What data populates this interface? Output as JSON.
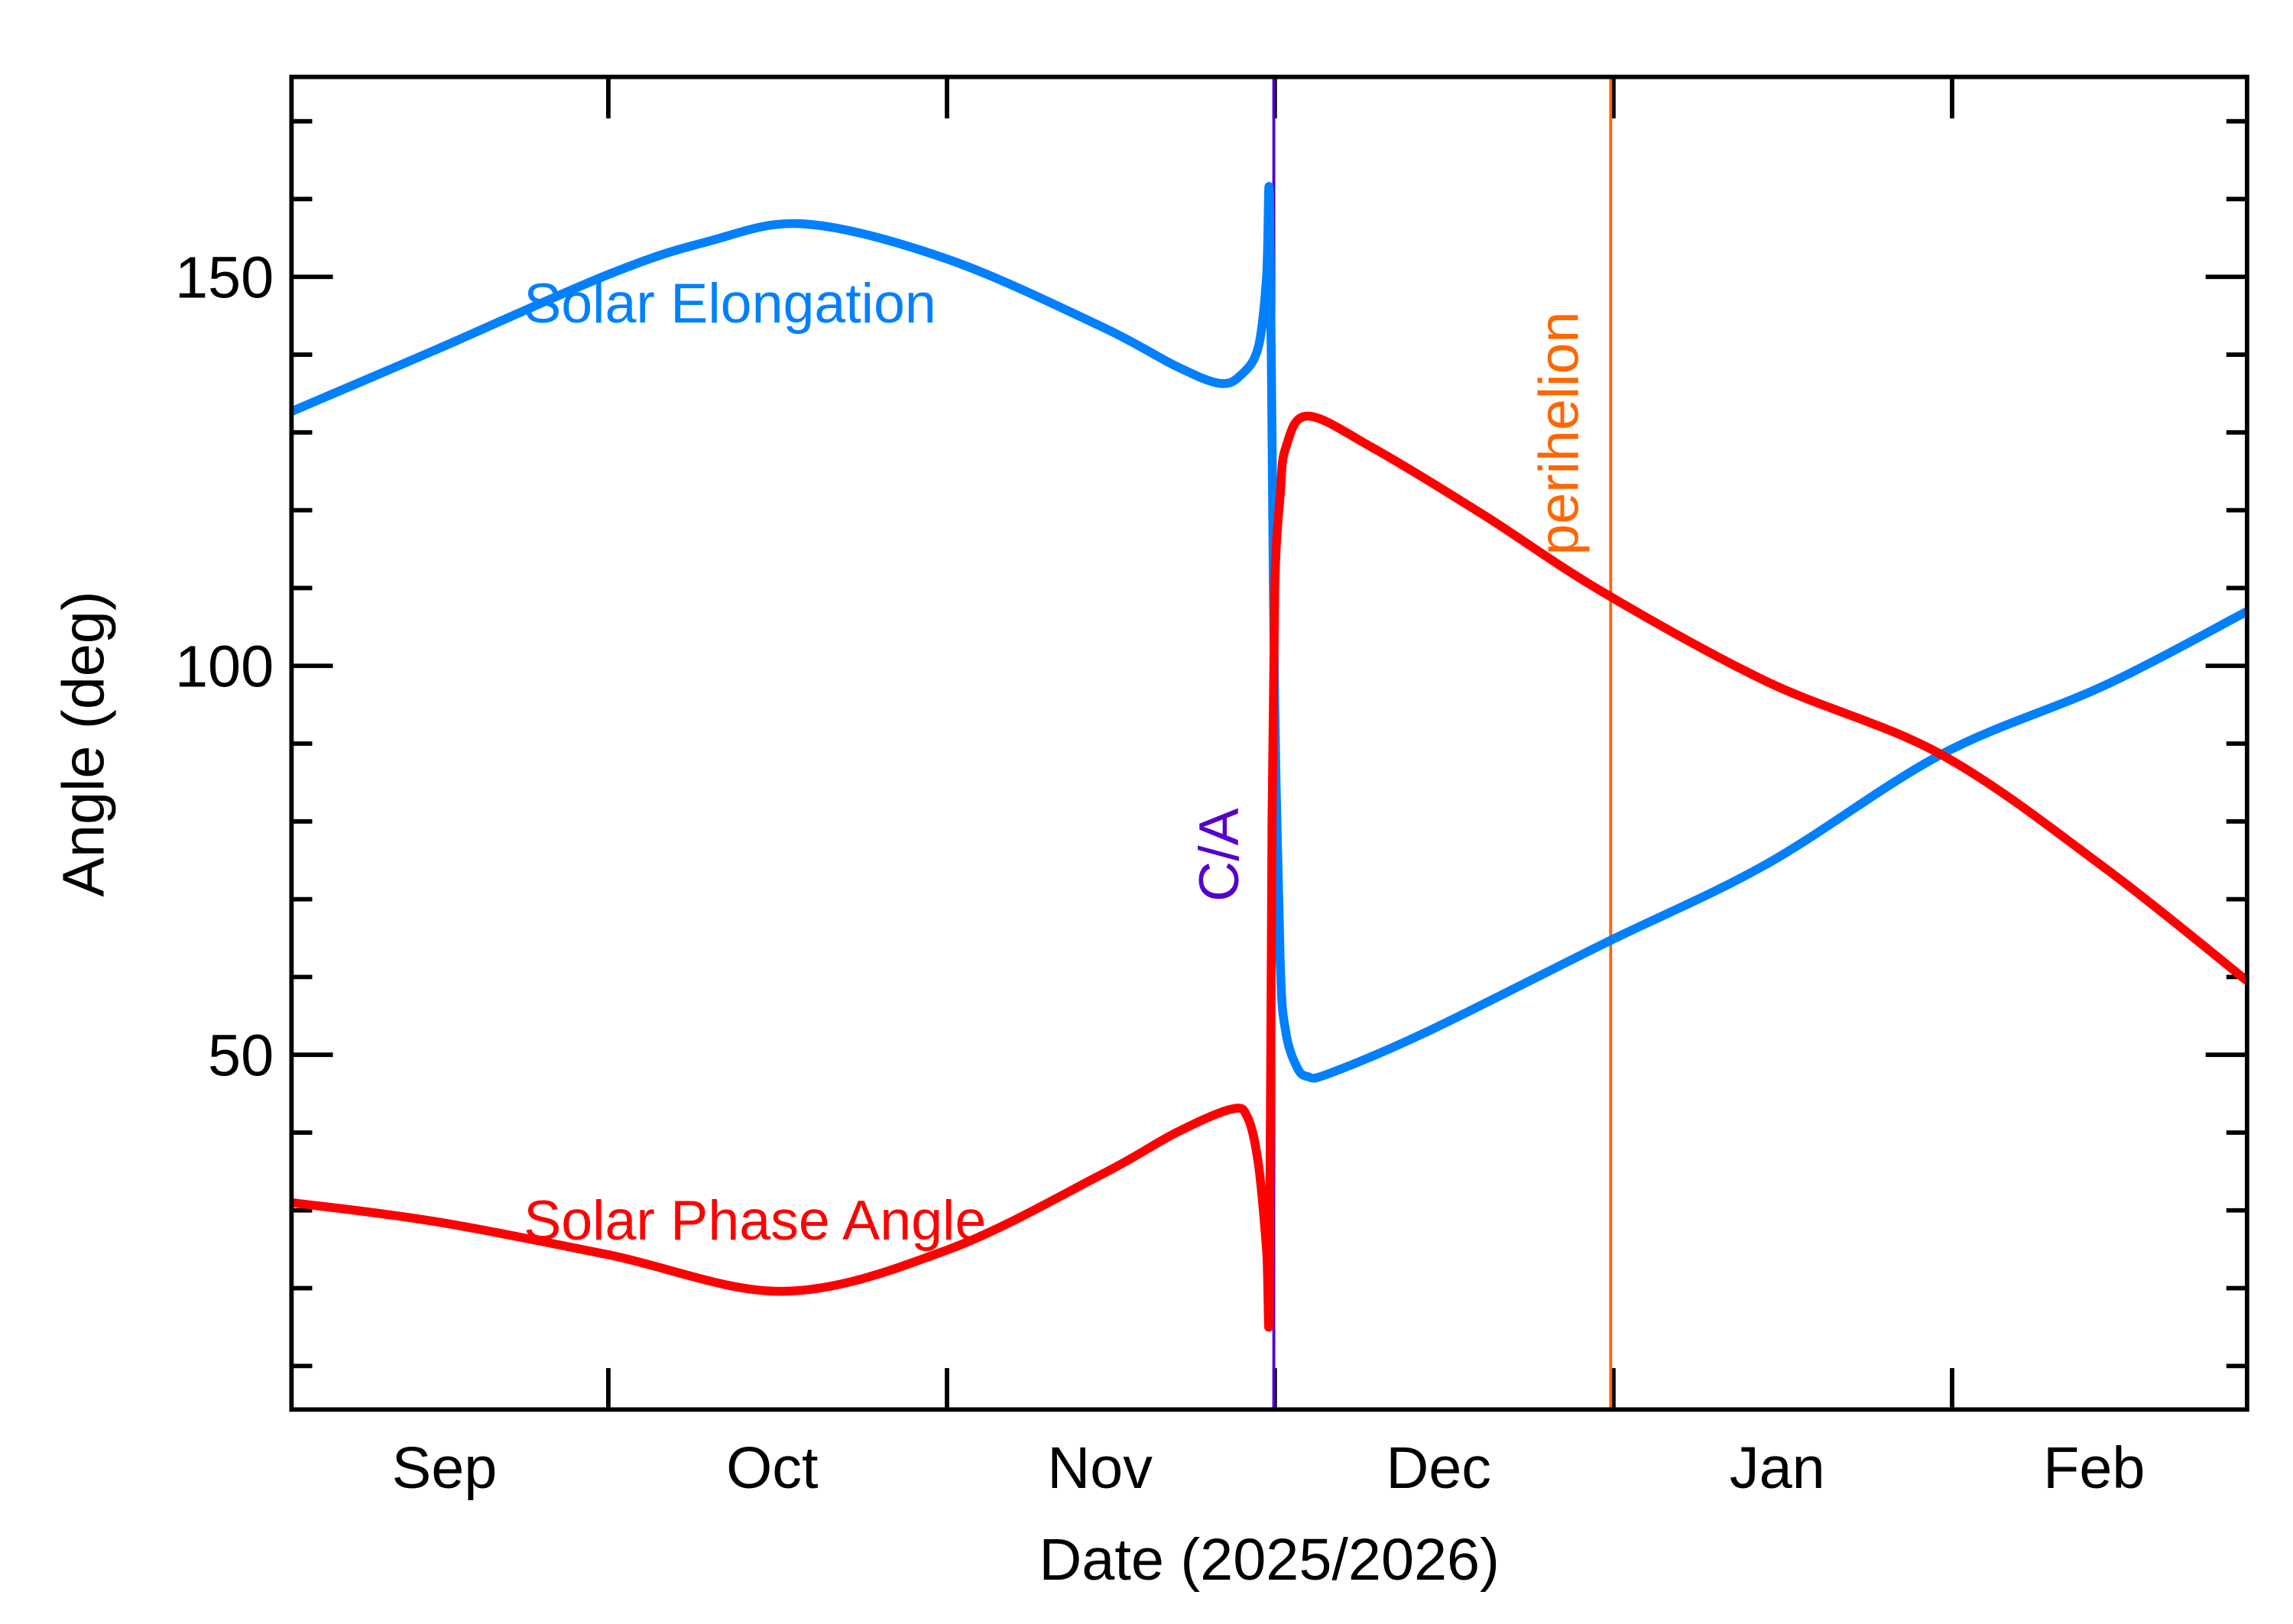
{
  "chart_data": {
    "type": "line",
    "title": "",
    "xlabel": "Date (2025/2026)",
    "ylabel": "Angle (deg)",
    "xlim": [
      "2025-09-02",
      "2026-02-28"
    ],
    "ylim": [
      4.4,
      175.7
    ],
    "grid": false,
    "x_tick_labels": [
      {
        "label": "Sep",
        "date": "2025-09-16"
      },
      {
        "label": "Oct",
        "date": "2025-10-16"
      },
      {
        "label": "Nov",
        "date": "2025-11-15"
      },
      {
        "label": "Dec",
        "date": "2025-12-16"
      },
      {
        "label": "Jan",
        "date": "2026-01-16"
      },
      {
        "label": "Feb",
        "date": "2026-02-14"
      }
    ],
    "x_major_ticks": [
      "2025-10-01",
      "2025-11-01",
      "2025-12-01",
      "2026-01-01",
      "2026-02-01"
    ],
    "y_tick_labels": [
      50,
      100,
      150
    ],
    "y_minor_step": 10,
    "series": [
      {
        "name": "Solar Elongation",
        "color": "#0080ff",
        "label_anchor": [
          "2025-09-23",
          147
        ],
        "points": [
          [
            "2025-09-02",
            132.7
          ],
          [
            "2025-09-15",
            140.5
          ],
          [
            "2025-10-01",
            150.3
          ],
          [
            "2025-10-10",
            154.5
          ],
          [
            "2025-10-19",
            156.8
          ],
          [
            "2025-11-01",
            152.3
          ],
          [
            "2025-11-15",
            143.7
          ],
          [
            "2025-11-22",
            138.5
          ],
          [
            "2025-11-26",
            136.3
          ],
          [
            "2025-11-28",
            137.5
          ],
          [
            "2025-11-29T12:00",
            141
          ],
          [
            "2025-11-30T06:00",
            150
          ],
          [
            "2025-11-30T12:00",
            161
          ],
          [
            "2025-11-30T18:00",
            130
          ],
          [
            "2025-12-01T00:00",
            95
          ],
          [
            "2025-12-01T12:00",
            62
          ],
          [
            "2025-12-02",
            53
          ],
          [
            "2025-12-03",
            48.5
          ],
          [
            "2025-12-04",
            47.2
          ],
          [
            "2025-12-06",
            47.6
          ],
          [
            "2025-12-15",
            53
          ],
          [
            "2025-12-31",
            64.2
          ],
          [
            "2026-01-15",
            74.5
          ],
          [
            "2026-01-31",
            88.6
          ],
          [
            "2026-02-15",
            97.5
          ],
          [
            "2026-02-28",
            107
          ]
        ]
      },
      {
        "name": "Solar Phase Angle",
        "color": "#ff0000",
        "label_anchor": [
          "2025-09-23",
          28
        ],
        "points": [
          [
            "2025-09-02",
            31
          ],
          [
            "2025-09-15",
            28.6
          ],
          [
            "2025-10-01",
            24.3
          ],
          [
            "2025-10-17",
            19.6
          ],
          [
            "2025-11-01",
            24.9
          ],
          [
            "2025-11-15",
            34.5
          ],
          [
            "2025-11-22",
            40
          ],
          [
            "2025-11-27",
            43
          ],
          [
            "2025-11-28T12:00",
            42
          ],
          [
            "2025-11-29T12:00",
            36
          ],
          [
            "2025-11-30T06:00",
            25
          ],
          [
            "2025-11-30T12:00",
            18.2
          ],
          [
            "2025-11-30T18:00",
            80
          ],
          [
            "2025-12-01T00:00",
            110
          ],
          [
            "2025-12-01T12:00",
            122
          ],
          [
            "2025-12-02",
            128
          ],
          [
            "2025-12-04",
            132.1
          ],
          [
            "2025-12-10",
            128
          ],
          [
            "2025-12-20",
            119.5
          ],
          [
            "2025-12-31",
            109.5
          ],
          [
            "2026-01-15",
            98
          ],
          [
            "2026-01-31",
            88.6
          ],
          [
            "2026-02-15",
            74
          ],
          [
            "2026-02-28",
            59.5
          ]
        ]
      }
    ],
    "markers": [
      {
        "label": "C/A",
        "date": "2025-11-30T22:00",
        "color": "#5500cc"
      },
      {
        "label": "perihelion",
        "date": "2025-12-31T18:00",
        "color": "#ff6600"
      }
    ]
  }
}
